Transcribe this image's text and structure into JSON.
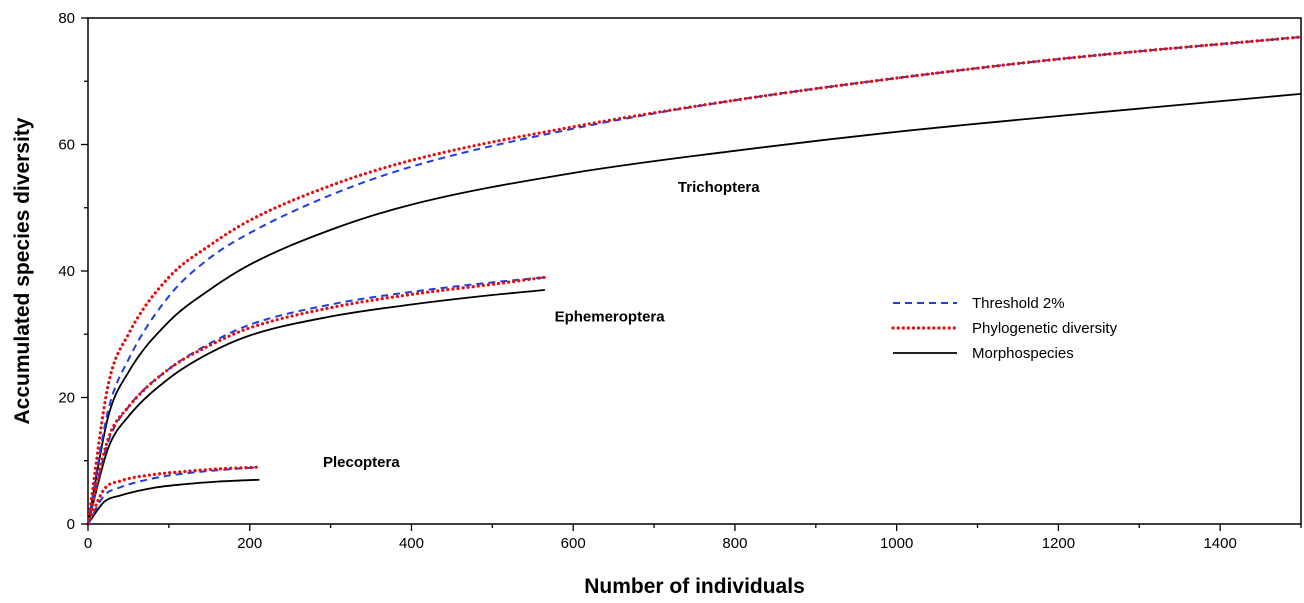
{
  "chart_data": {
    "type": "line",
    "title": "",
    "xlabel": "Number of individuals",
    "ylabel": "Accumulated species diversity",
    "xlim": [
      0,
      1500
    ],
    "ylim": [
      0,
      80
    ],
    "x_ticks": [
      0,
      200,
      400,
      600,
      800,
      1000,
      1200,
      1400
    ],
    "y_ticks": [
      0,
      20,
      40,
      60,
      80
    ],
    "grid": false,
    "legend_position": "right-center",
    "legend": [
      {
        "name": "Threshold 2%",
        "color": "#1f3de0",
        "style": "dashed"
      },
      {
        "name": "Phylogenetic diversity",
        "color": "#e01010",
        "style": "dotted"
      },
      {
        "name": "Morphospecies",
        "color": "#000000",
        "style": "solid"
      }
    ],
    "groups": [
      {
        "label": "Trichoptera",
        "series": [
          {
            "name": "Threshold 2%",
            "x": [
              0,
              25,
              50,
              100,
              150,
              200,
              300,
              400,
              600,
              800,
              1000,
              1200,
              1500
            ],
            "y": [
              0,
              18,
              26,
              36,
              42,
              46,
              52,
              56.5,
              62.5,
              67,
              70.5,
              73.5,
              77
            ]
          },
          {
            "name": "Phylogenetic diversity",
            "x": [
              0,
              25,
              50,
              100,
              150,
              200,
              300,
              400,
              600,
              800,
              1000,
              1200,
              1500
            ],
            "y": [
              0,
              22,
              30,
              39,
              44,
              48,
              53.5,
              57.5,
              62.8,
              67,
              70.5,
              73.5,
              77
            ]
          },
          {
            "name": "Morphospecies",
            "x": [
              0,
              25,
              50,
              100,
              150,
              200,
              300,
              400,
              600,
              800,
              1000,
              1200,
              1500
            ],
            "y": [
              0,
              17,
              24,
              32,
              37,
              41,
              46.5,
              50.5,
              55.5,
              59,
              62,
              64.5,
              68
            ]
          }
        ]
      },
      {
        "label": "Ephemeroptera",
        "series": [
          {
            "name": "Threshold 2%",
            "x": [
              0,
              25,
              50,
              100,
              150,
              200,
              300,
              400,
              500,
              565
            ],
            "y": [
              0,
              13,
              18.5,
              24.5,
              28.5,
              31.5,
              34.7,
              36.7,
              38.2,
              39
            ]
          },
          {
            "name": "Phylogenetic diversity",
            "x": [
              0,
              25,
              50,
              100,
              150,
              200,
              300,
              400,
              500,
              565
            ],
            "y": [
              0,
              13.5,
              18.5,
              24.5,
              28.2,
              31,
              34.2,
              36.3,
              37.9,
              39
            ]
          },
          {
            "name": "Morphospecies",
            "x": [
              0,
              25,
              50,
              100,
              150,
              200,
              300,
              400,
              500,
              565
            ],
            "y": [
              0,
              12,
              17,
              23,
              27,
              29.8,
              32.8,
              34.7,
              36.2,
              37
            ]
          }
        ]
      },
      {
        "label": "Plecoptera",
        "series": [
          {
            "name": "Threshold 2%",
            "x": [
              0,
              20,
              40,
              80,
              120,
              160,
              212
            ],
            "y": [
              0,
              4.5,
              5.8,
              7.2,
              8,
              8.5,
              9
            ]
          },
          {
            "name": "Phylogenetic diversity",
            "x": [
              0,
              20,
              40,
              80,
              120,
              160,
              212
            ],
            "y": [
              0,
              5.5,
              6.8,
              7.8,
              8.3,
              8.7,
              9
            ]
          },
          {
            "name": "Morphospecies",
            "x": [
              0,
              20,
              40,
              80,
              120,
              160,
              212
            ],
            "y": [
              0,
              3.5,
              4.5,
              5.7,
              6.3,
              6.7,
              7
            ]
          }
        ]
      }
    ]
  }
}
